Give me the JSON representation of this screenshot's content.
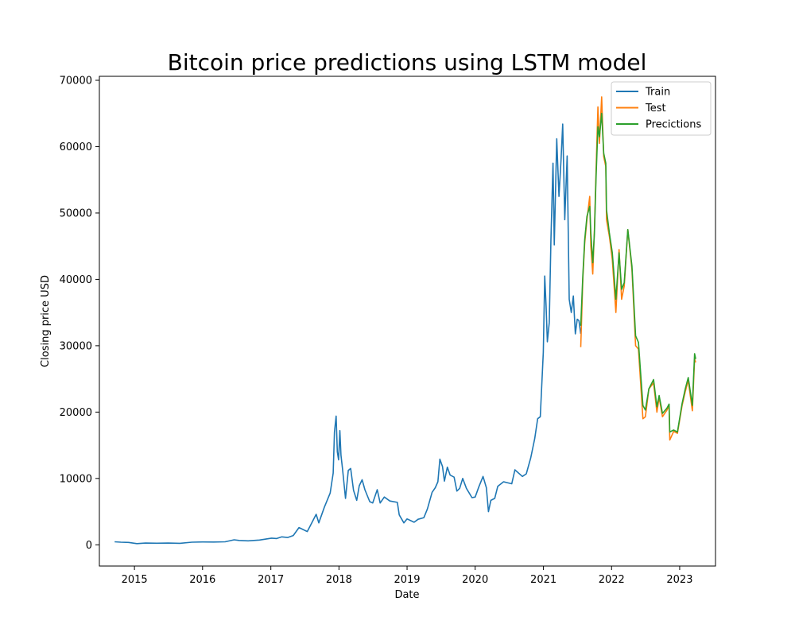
{
  "chart_data": {
    "type": "line",
    "title": "Bitcoin price predictions using LSTM model",
    "xlabel": "Date",
    "ylabel": "Closing price USD",
    "xlim": [
      "2014-06-27",
      "2023-07-12"
    ],
    "ylim": [
      -3200,
      70600
    ],
    "x_ticks": [
      "2015",
      "2016",
      "2017",
      "2018",
      "2019",
      "2020",
      "2021",
      "2022",
      "2023"
    ],
    "y_ticks": [
      0,
      10000,
      20000,
      30000,
      40000,
      50000,
      60000,
      70000
    ],
    "grid": false,
    "legend": {
      "position": "top-right"
    },
    "series": [
      {
        "name": "Train",
        "color": "#1f77b4",
        "points": [
          [
            "2014-09-17",
            460
          ],
          [
            "2014-10-20",
            390
          ],
          [
            "2014-12-01",
            360
          ],
          [
            "2015-01-14",
            180
          ],
          [
            "2015-03-01",
            260
          ],
          [
            "2015-05-01",
            240
          ],
          [
            "2015-07-01",
            260
          ],
          [
            "2015-09-01",
            230
          ],
          [
            "2015-11-05",
            400
          ],
          [
            "2016-01-01",
            430
          ],
          [
            "2016-03-01",
            420
          ],
          [
            "2016-05-01",
            450
          ],
          [
            "2016-06-18",
            750
          ],
          [
            "2016-07-15",
            660
          ],
          [
            "2016-09-01",
            600
          ],
          [
            "2016-11-01",
            720
          ],
          [
            "2017-01-05",
            1000
          ],
          [
            "2017-02-01",
            950
          ],
          [
            "2017-03-01",
            1200
          ],
          [
            "2017-04-01",
            1100
          ],
          [
            "2017-05-01",
            1400
          ],
          [
            "2017-06-01",
            2600
          ],
          [
            "2017-07-15",
            2000
          ],
          [
            "2017-08-10",
            3400
          ],
          [
            "2017-09-01",
            4600
          ],
          [
            "2017-09-15",
            3300
          ],
          [
            "2017-10-15",
            5700
          ],
          [
            "2017-11-15",
            7800
          ],
          [
            "2017-12-01",
            10800
          ],
          [
            "2017-12-08",
            17000
          ],
          [
            "2017-12-17",
            19400
          ],
          [
            "2017-12-23",
            14000
          ],
          [
            "2017-12-30",
            12800
          ],
          [
            "2018-01-06",
            17200
          ],
          [
            "2018-01-12",
            13500
          ],
          [
            "2018-01-20",
            11500
          ],
          [
            "2018-02-05",
            7000
          ],
          [
            "2018-02-20",
            11200
          ],
          [
            "2018-03-05",
            11500
          ],
          [
            "2018-03-20",
            8200
          ],
          [
            "2018-04-06",
            6700
          ],
          [
            "2018-04-20",
            8900
          ],
          [
            "2018-05-05",
            9800
          ],
          [
            "2018-05-20",
            8300
          ],
          [
            "2018-06-15",
            6500
          ],
          [
            "2018-07-01",
            6300
          ],
          [
            "2018-07-25",
            8300
          ],
          [
            "2018-08-10",
            6300
          ],
          [
            "2018-09-01",
            7200
          ],
          [
            "2018-10-01",
            6600
          ],
          [
            "2018-11-10",
            6400
          ],
          [
            "2018-11-20",
            4500
          ],
          [
            "2018-12-15",
            3300
          ],
          [
            "2019-01-01",
            3900
          ],
          [
            "2019-02-08",
            3400
          ],
          [
            "2019-03-01",
            3850
          ],
          [
            "2019-04-01",
            4100
          ],
          [
            "2019-04-20",
            5400
          ],
          [
            "2019-05-15",
            7900
          ],
          [
            "2019-06-01",
            8600
          ],
          [
            "2019-06-15",
            9500
          ],
          [
            "2019-06-26",
            12900
          ],
          [
            "2019-07-10",
            11800
          ],
          [
            "2019-07-20",
            9600
          ],
          [
            "2019-08-05",
            11700
          ],
          [
            "2019-08-20",
            10500
          ],
          [
            "2019-09-10",
            10200
          ],
          [
            "2019-09-25",
            8100
          ],
          [
            "2019-10-10",
            8500
          ],
          [
            "2019-10-26",
            10000
          ],
          [
            "2019-11-15",
            8500
          ],
          [
            "2019-12-15",
            7100
          ],
          [
            "2020-01-01",
            7200
          ],
          [
            "2020-01-20",
            8700
          ],
          [
            "2020-02-12",
            10300
          ],
          [
            "2020-03-01",
            8600
          ],
          [
            "2020-03-12",
            5000
          ],
          [
            "2020-03-25",
            6700
          ],
          [
            "2020-04-15",
            7000
          ],
          [
            "2020-05-01",
            8800
          ],
          [
            "2020-06-01",
            9500
          ],
          [
            "2020-07-15",
            9200
          ],
          [
            "2020-08-01",
            11300
          ],
          [
            "2020-09-10",
            10300
          ],
          [
            "2020-10-01",
            10700
          ],
          [
            "2020-10-25",
            13100
          ],
          [
            "2020-11-15",
            16000
          ],
          [
            "2020-12-01",
            19000
          ],
          [
            "2020-12-15",
            19300
          ],
          [
            "2020-12-31",
            29000
          ],
          [
            "2021-01-08",
            40500
          ],
          [
            "2021-01-15",
            36000
          ],
          [
            "2021-01-22",
            30600
          ],
          [
            "2021-02-01",
            33500
          ],
          [
            "2021-02-10",
            46000
          ],
          [
            "2021-02-21",
            57500
          ],
          [
            "2021-02-28",
            45200
          ],
          [
            "2021-03-13",
            61200
          ],
          [
            "2021-03-25",
            52500
          ],
          [
            "2021-04-05",
            58000
          ],
          [
            "2021-04-14",
            63400
          ],
          [
            "2021-04-25",
            49000
          ],
          [
            "2021-05-08",
            58600
          ],
          [
            "2021-05-19",
            37000
          ],
          [
            "2021-05-30",
            35000
          ],
          [
            "2021-06-10",
            37500
          ],
          [
            "2021-06-21",
            31800
          ],
          [
            "2021-07-01",
            34000
          ],
          [
            "2021-07-10",
            33800
          ],
          [
            "2021-07-20",
            31800
          ]
        ]
      },
      {
        "name": "Test",
        "color": "#ff7f0e",
        "points": [
          [
            "2021-07-20",
            29800
          ],
          [
            "2021-07-31",
            40000
          ],
          [
            "2021-08-10",
            45500
          ],
          [
            "2021-08-22",
            49000
          ],
          [
            "2021-09-06",
            52500
          ],
          [
            "2021-09-12",
            45000
          ],
          [
            "2021-09-22",
            40800
          ],
          [
            "2021-10-01",
            47500
          ],
          [
            "2021-10-10",
            56500
          ],
          [
            "2021-10-20",
            66000
          ],
          [
            "2021-10-28",
            60500
          ],
          [
            "2021-11-09",
            67500
          ],
          [
            "2021-11-20",
            58500
          ],
          [
            "2021-12-01",
            57000
          ],
          [
            "2021-12-05",
            49000
          ],
          [
            "2021-12-20",
            46500
          ],
          [
            "2022-01-05",
            43000
          ],
          [
            "2022-01-24",
            35000
          ],
          [
            "2022-02-10",
            44500
          ],
          [
            "2022-02-24",
            37000
          ],
          [
            "2022-03-10",
            39000
          ],
          [
            "2022-03-29",
            47500
          ],
          [
            "2022-04-20",
            41500
          ],
          [
            "2022-05-10",
            30000
          ],
          [
            "2022-05-25",
            29500
          ],
          [
            "2022-06-18",
            19000
          ],
          [
            "2022-07-01",
            19300
          ],
          [
            "2022-07-20",
            23500
          ],
          [
            "2022-08-14",
            24400
          ],
          [
            "2022-09-01",
            20000
          ],
          [
            "2022-09-13",
            22200
          ],
          [
            "2022-10-01",
            19300
          ],
          [
            "2022-10-25",
            20300
          ],
          [
            "2022-11-05",
            21000
          ],
          [
            "2022-11-09",
            15800
          ],
          [
            "2022-11-30",
            17100
          ],
          [
            "2022-12-20",
            16800
          ],
          [
            "2023-01-14",
            21000
          ],
          [
            "2023-01-31",
            23100
          ],
          [
            "2023-02-16",
            24800
          ],
          [
            "2023-03-10",
            20200
          ],
          [
            "2023-03-22",
            28000
          ],
          [
            "2023-03-28",
            27500
          ]
        ]
      },
      {
        "name": "Precictions",
        "color": "#2ca02c",
        "points": [
          [
            "2021-07-20",
            33000
          ],
          [
            "2021-07-31",
            40500
          ],
          [
            "2021-08-10",
            46000
          ],
          [
            "2021-08-22",
            49500
          ],
          [
            "2021-09-06",
            51000
          ],
          [
            "2021-09-12",
            47000
          ],
          [
            "2021-09-22",
            42500
          ],
          [
            "2021-10-01",
            47000
          ],
          [
            "2021-10-10",
            55500
          ],
          [
            "2021-10-20",
            63000
          ],
          [
            "2021-10-28",
            61500
          ],
          [
            "2021-11-09",
            65000
          ],
          [
            "2021-11-20",
            59000
          ],
          [
            "2021-12-01",
            57500
          ],
          [
            "2021-12-05",
            50500
          ],
          [
            "2021-12-20",
            47000
          ],
          [
            "2022-01-05",
            44000
          ],
          [
            "2022-01-24",
            37000
          ],
          [
            "2022-02-10",
            44000
          ],
          [
            "2022-02-24",
            38500
          ],
          [
            "2022-03-10",
            39500
          ],
          [
            "2022-03-29",
            47500
          ],
          [
            "2022-04-20",
            42000
          ],
          [
            "2022-05-10",
            31500
          ],
          [
            "2022-05-25",
            30500
          ],
          [
            "2022-06-18",
            21000
          ],
          [
            "2022-07-01",
            20300
          ],
          [
            "2022-07-20",
            23500
          ],
          [
            "2022-08-14",
            24900
          ],
          [
            "2022-09-01",
            20800
          ],
          [
            "2022-09-13",
            22500
          ],
          [
            "2022-10-01",
            19800
          ],
          [
            "2022-10-25",
            20600
          ],
          [
            "2022-11-05",
            21200
          ],
          [
            "2022-11-09",
            17000
          ],
          [
            "2022-11-30",
            17300
          ],
          [
            "2022-12-20",
            17000
          ],
          [
            "2023-01-14",
            21300
          ],
          [
            "2023-01-31",
            23500
          ],
          [
            "2023-02-16",
            25200
          ],
          [
            "2023-03-10",
            21000
          ],
          [
            "2023-03-22",
            28800
          ],
          [
            "2023-03-28",
            28000
          ]
        ]
      }
    ]
  }
}
